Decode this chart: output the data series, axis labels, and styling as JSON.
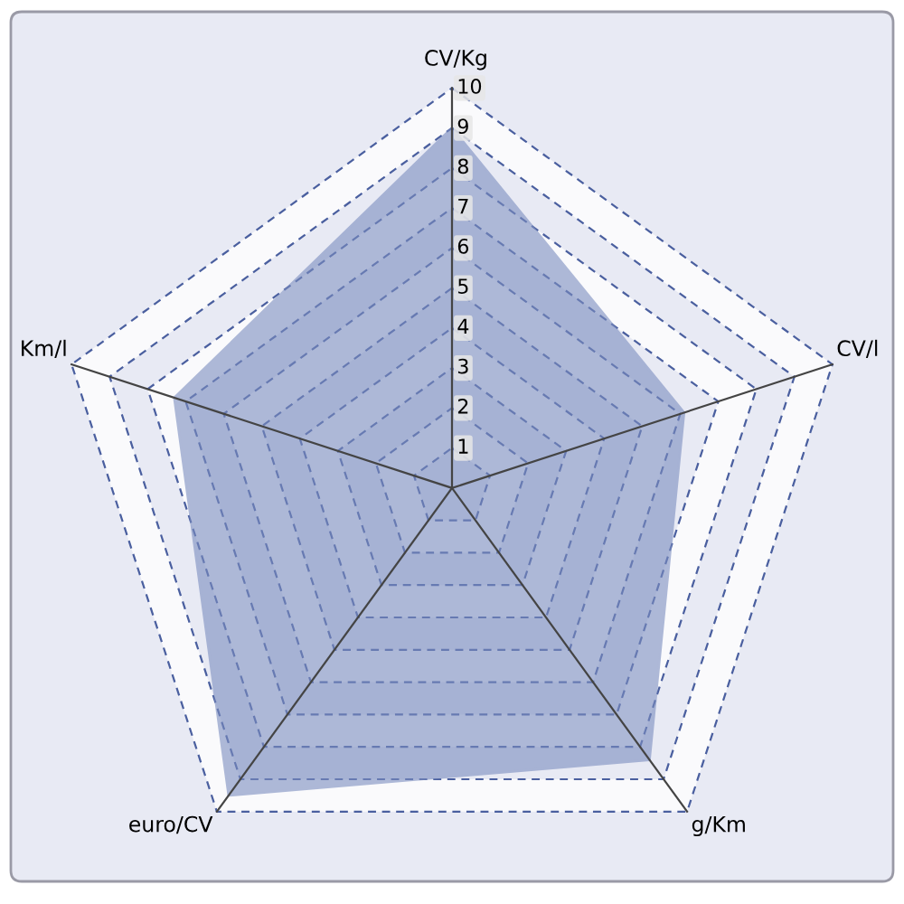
{
  "chart_data": {
    "type": "radar",
    "categories": [
      "CV/Kg",
      "CV/l",
      "g/Km",
      "euro/CV",
      "Km/l"
    ],
    "series": [
      {
        "color": "#7b8dbf",
        "values": [
          9,
          6.1,
          8.4,
          9.5,
          7.3
        ]
      }
    ],
    "ylim": [
      0,
      10
    ],
    "yticks": [
      1,
      2,
      3,
      4,
      5,
      6,
      7,
      8,
      9,
      10
    ],
    "grid": true
  }
}
